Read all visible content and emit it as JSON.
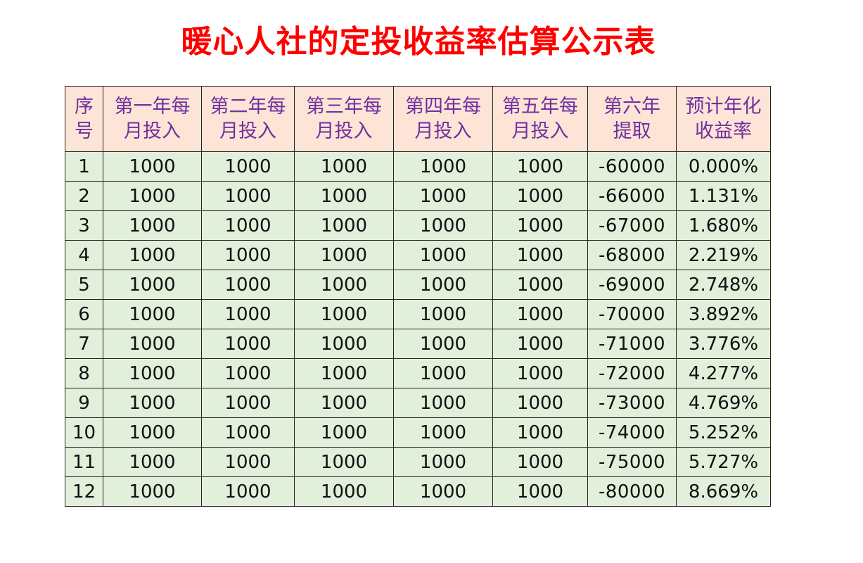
{
  "title": "暖心人社的定投收益率估算公示表",
  "header": [
    {
      "line1": "序",
      "line2": "号"
    },
    {
      "line1": "第一年每",
      "line2": "月投入"
    },
    {
      "line1": "第二年每",
      "line2": "月投入"
    },
    {
      "line1": "第三年每",
      "line2": "月投入"
    },
    {
      "line1": "第四年每",
      "line2": "月投入"
    },
    {
      "line1": "第五年每",
      "line2": "月投入"
    },
    {
      "line1": "第六年",
      "line2": "提取"
    },
    {
      "line1": "预计年化",
      "line2": "收益率"
    }
  ],
  "rows": [
    [
      "1",
      "1000",
      "1000",
      "1000",
      "1000",
      "1000",
      "-60000",
      "0.000%"
    ],
    [
      "2",
      "1000",
      "1000",
      "1000",
      "1000",
      "1000",
      "-66000",
      "1.131%"
    ],
    [
      "3",
      "1000",
      "1000",
      "1000",
      "1000",
      "1000",
      "-67000",
      "1.680%"
    ],
    [
      "4",
      "1000",
      "1000",
      "1000",
      "1000",
      "1000",
      "-68000",
      "2.219%"
    ],
    [
      "5",
      "1000",
      "1000",
      "1000",
      "1000",
      "1000",
      "-69000",
      "2.748%"
    ],
    [
      "6",
      "1000",
      "1000",
      "1000",
      "1000",
      "1000",
      "-70000",
      "3.892%"
    ],
    [
      "7",
      "1000",
      "1000",
      "1000",
      "1000",
      "1000",
      "-71000",
      "3.776%"
    ],
    [
      "8",
      "1000",
      "1000",
      "1000",
      "1000",
      "1000",
      "-72000",
      "4.277%"
    ],
    [
      "9",
      "1000",
      "1000",
      "1000",
      "1000",
      "1000",
      "-73000",
      "4.769%"
    ],
    [
      "10",
      "1000",
      "1000",
      "1000",
      "1000",
      "1000",
      "-74000",
      "5.252%"
    ],
    [
      "11",
      "1000",
      "1000",
      "1000",
      "1000",
      "1000",
      "-75000",
      "5.727%"
    ],
    [
      "12",
      "1000",
      "1000",
      "1000",
      "1000",
      "1000",
      "-80000",
      "8.669%"
    ]
  ],
  "colors": {
    "title": "#ff0000",
    "header_bg": "#fce4d6",
    "header_text": "#7030a0",
    "body_bg": "#e2efda",
    "border": "#222222"
  }
}
